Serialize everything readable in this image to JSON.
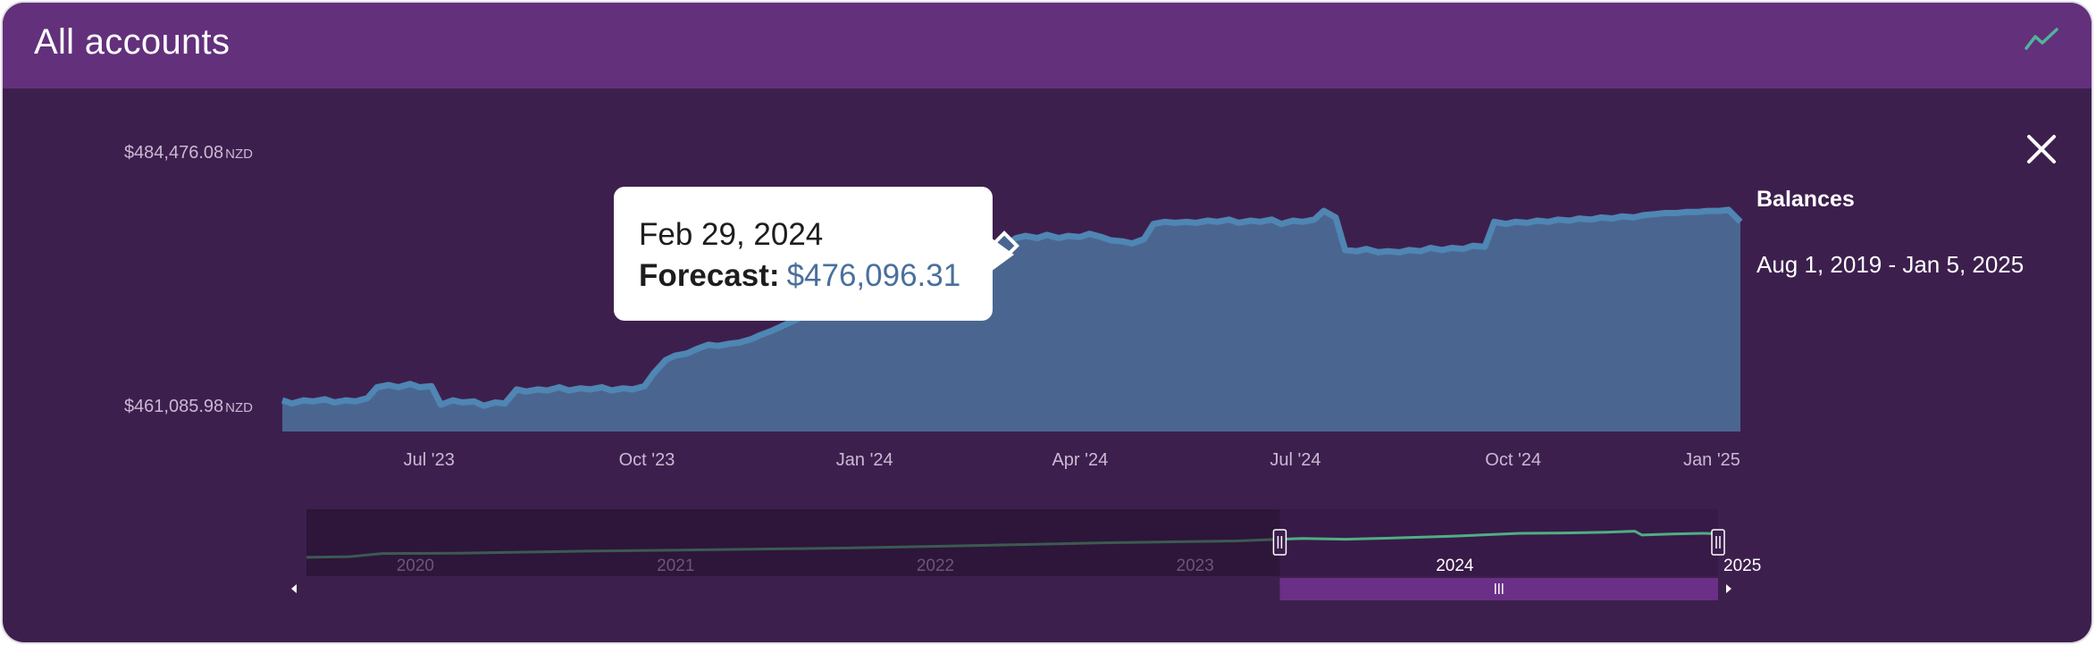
{
  "header": {
    "title": "All accounts",
    "chart_icon": "line-chart-icon"
  },
  "close_icon": "close-icon",
  "yaxis": {
    "max_label": "$484,476.08",
    "min_label": "$461,085.98",
    "unit": "NZD"
  },
  "side_panel": {
    "title": "Balances",
    "range": "Aug 1, 2019 - Jan 5, 2025"
  },
  "tooltip": {
    "date": "Feb 29, 2024",
    "label": "Forecast:",
    "value": "$476,096.31"
  },
  "navigator": {
    "year_labels": [
      "2020",
      "2021",
      "2022",
      "2023",
      "2024",
      "2025"
    ],
    "handle_icon": "drag-handle-icon",
    "left_arrow_icon": "scroll-left-icon",
    "right_arrow_icon": "scroll-right-icon"
  },
  "colors": {
    "background": "#3d1f4e",
    "header": "#63307c",
    "area_fill": "#4a6690",
    "area_line": "#4f86b3",
    "navigator_line": "#4fae84"
  },
  "chart_data": {
    "type": "area",
    "series": [
      {
        "name": "Forecast",
        "x": [
          "2023-04-30",
          "2023-05-04",
          "2023-05-09",
          "2023-05-13",
          "2023-05-18",
          "2023-05-22",
          "2023-05-27",
          "2023-05-31",
          "2023-06-05",
          "2023-06-09",
          "2023-06-14",
          "2023-06-18",
          "2023-06-23",
          "2023-06-27",
          "2023-07-02",
          "2023-07-06",
          "2023-07-11",
          "2023-07-15",
          "2023-07-20",
          "2023-07-24",
          "2023-07-29",
          "2023-08-02",
          "2023-08-07",
          "2023-08-11",
          "2023-08-16",
          "2023-08-20",
          "2023-08-25",
          "2023-08-29",
          "2023-09-03",
          "2023-09-07",
          "2023-09-12",
          "2023-09-16",
          "2023-09-21",
          "2023-09-25",
          "2023-09-30",
          "2023-10-04",
          "2023-10-09",
          "2023-10-13",
          "2023-10-18",
          "2023-10-22",
          "2023-10-27",
          "2023-10-31",
          "2023-11-05",
          "2023-11-09",
          "2023-11-14",
          "2023-11-18",
          "2023-11-23",
          "2023-11-27",
          "2023-12-02",
          "2023-12-06",
          "2023-12-11",
          "2023-12-15",
          "2023-12-20",
          "2023-12-24",
          "2023-12-29",
          "2024-01-02",
          "2024-01-07",
          "2024-01-11",
          "2024-01-16",
          "2024-01-20",
          "2024-01-25",
          "2024-01-29",
          "2024-02-03",
          "2024-02-07",
          "2024-02-12",
          "2024-02-16",
          "2024-02-21",
          "2024-02-25",
          "2024-02-29",
          "2024-03-05",
          "2024-03-09",
          "2024-03-14",
          "2024-03-18",
          "2024-03-23",
          "2024-03-27",
          "2024-04-01",
          "2024-04-05",
          "2024-04-10",
          "2024-04-14",
          "2024-04-19",
          "2024-04-23",
          "2024-04-28",
          "2024-05-02",
          "2024-05-07",
          "2024-05-11",
          "2024-05-16",
          "2024-05-20",
          "2024-05-25",
          "2024-05-29",
          "2024-06-03",
          "2024-06-07",
          "2024-06-12",
          "2024-06-16",
          "2024-06-21",
          "2024-06-25",
          "2024-06-30",
          "2024-07-04",
          "2024-07-09",
          "2024-07-13",
          "2024-07-18",
          "2024-07-22",
          "2024-07-27",
          "2024-07-31",
          "2024-08-05",
          "2024-08-09",
          "2024-08-14",
          "2024-08-18",
          "2024-08-23",
          "2024-08-27",
          "2024-09-01",
          "2024-09-05",
          "2024-09-10",
          "2024-09-14",
          "2024-09-19",
          "2024-09-23",
          "2024-09-28",
          "2024-10-02",
          "2024-10-07",
          "2024-10-11",
          "2024-10-16",
          "2024-10-20",
          "2024-10-25",
          "2024-10-29",
          "2024-11-03",
          "2024-11-07",
          "2024-11-12",
          "2024-11-16",
          "2024-11-21",
          "2024-11-25",
          "2024-11-30",
          "2024-12-04",
          "2024-12-09",
          "2024-12-13",
          "2024-12-18",
          "2024-12-22",
          "2024-12-27",
          "2024-12-31",
          "2025-01-05"
        ],
        "values": [
          461900,
          461600,
          461900,
          461800,
          462000,
          461700,
          461900,
          461800,
          462100,
          463100,
          463300,
          463100,
          463400,
          463100,
          463200,
          461500,
          461900,
          461700,
          461800,
          461400,
          461700,
          461600,
          462900,
          462700,
          462900,
          462800,
          463100,
          462800,
          463000,
          462900,
          463100,
          462800,
          463000,
          462900,
          463200,
          464400,
          465600,
          466000,
          466200,
          466600,
          467000,
          466900,
          467100,
          467200,
          467500,
          467900,
          468300,
          468700,
          469200,
          469600,
          470100,
          470500,
          470900,
          471400,
          471800,
          472200,
          472700,
          473100,
          473500,
          473900,
          474100,
          474300,
          474600,
          474800,
          475000,
          475300,
          475600,
          475800,
          476096,
          476800,
          477000,
          476800,
          477100,
          476800,
          477000,
          476900,
          477200,
          476900,
          476600,
          476500,
          476300,
          476700,
          478100,
          478300,
          478200,
          478300,
          478200,
          478400,
          478300,
          478500,
          478200,
          478400,
          478300,
          478500,
          478100,
          478400,
          478300,
          478500,
          479300,
          478700,
          475700,
          475600,
          475800,
          475500,
          475600,
          475500,
          475700,
          475600,
          475900,
          475700,
          475900,
          475800,
          476100,
          476000,
          478300,
          478100,
          478300,
          478200,
          478400,
          478300,
          478500,
          478400,
          478600,
          478500,
          478700,
          478600,
          478800,
          478700,
          478900,
          479000,
          479100,
          479100,
          479200,
          479200,
          479300,
          479300,
          479400,
          478300
        ],
        "note_source_key": null
      }
    ],
    "xticks": [
      "Jul '23",
      "Oct '23",
      "Jan '24",
      "Apr '24",
      "Jul '24",
      "Oct '24",
      "Jan '25"
    ],
    "ylim": [
      461085.98,
      484476.08
    ],
    "ylabels": [
      "$461,085.98",
      "$484,476.08"
    ],
    "y_unit": "NZD",
    "highlight": {
      "x": "2024-02-29",
      "value": 476096.31
    },
    "navigator": {
      "range": [
        "2019-08-01",
        "2025-01-05"
      ],
      "selected": [
        "2023-04-30",
        "2025-01-05"
      ]
    },
    "grid": false,
    "legend": "none"
  }
}
